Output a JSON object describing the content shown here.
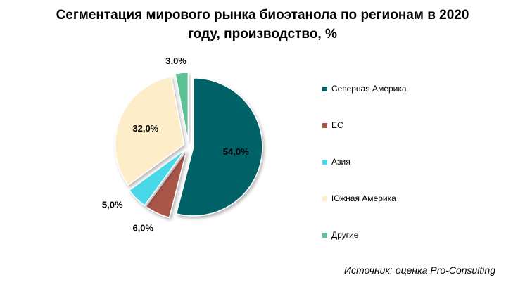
{
  "chart_data": {
    "type": "pie",
    "title_line1": "Сегментация мирового рынка биоэтанола по регионам в 2020",
    "title_line2": "году, производство, %",
    "slices": [
      {
        "name": "Северная Америка",
        "value": 54.0,
        "label": "54,0%",
        "color": "#006266"
      },
      {
        "name": "ЕС",
        "value": 6.0,
        "label": "6,0%",
        "color": "#a9574a"
      },
      {
        "name": "Азия",
        "value": 5.0,
        "label": "5,0%",
        "color": "#4ad8e8"
      },
      {
        "name": "Южная Америка",
        "value": 32.0,
        "label": "32,0%",
        "color": "#fdedc8"
      },
      {
        "name": "Другие",
        "value": 3.0,
        "label": "3,0%",
        "color": "#5bc194"
      }
    ],
    "legend_position": "right"
  },
  "source": "Источник: оценка Pro-Consulting"
}
